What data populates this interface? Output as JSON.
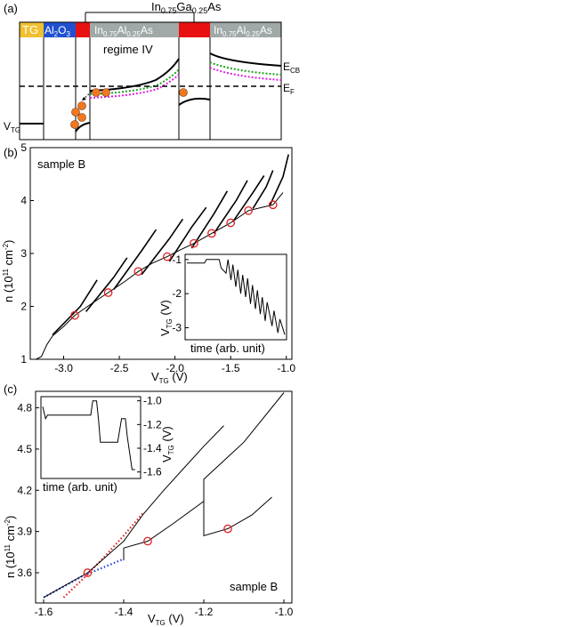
{
  "panel_a": {
    "label": "(a)",
    "layer_tg": "TG",
    "layer_oxide": "Al",
    "layer_oxide_sub": "2",
    "layer_oxide_tail": "O",
    "layer_oxide_sub2": "3",
    "barrier1": "In",
    "barrier1_sub1": "0.75",
    "barrier1_mid": "Al",
    "barrier1_sub2": "0.25",
    "barrier1_tail": "As",
    "barrier2": "In",
    "barrier2_sub1": "0.75",
    "barrier2_mid": "Al",
    "barrier2_sub2": "0.25",
    "barrier2_tail": "As",
    "well_label_a": "In",
    "well_label_sub1": "0.75",
    "well_label_b": "Ga",
    "well_label_sub2": "0.25",
    "well_label_c": "As",
    "regime": "regime IV",
    "ecb": "E",
    "ecb_sub": "CB",
    "ef": "E",
    "ef_sub": "F",
    "vtg": "V",
    "vtg_sub": "TG",
    "colors": {
      "tg": "#f0c030",
      "oxide": "#2050d0",
      "barrier": "#a0a8a8",
      "well": "#e81010",
      "electron": "#f07820",
      "green": "#20a020",
      "magenta": "#e020e0"
    }
  },
  "panel_b": {
    "label": "(b)",
    "sample": "sample B",
    "ylabel": "n (10",
    "ylabel_sup": "11",
    "ylabel_unit": " cm",
    "ylabel_sup2": "-2",
    "ylabel_close": ")",
    "xlabel": "V",
    "xlabel_sub": "TG",
    "xlabel_unit": " (V)",
    "inset_ylabel": "V",
    "inset_ylabel_sub": "TG",
    "inset_ylabel_unit": " (V)",
    "inset_xlabel": "time (arb. unit)"
  },
  "panel_c": {
    "label": "(c)",
    "sample": "sample B",
    "ylabel": "n (10",
    "ylabel_sup": "11",
    "ylabel_unit": " cm",
    "ylabel_sup2": "-2",
    "ylabel_close": ")",
    "xlabel": "V",
    "xlabel_sub": "TG",
    "xlabel_unit": " (V)",
    "inset_ylabel": "V",
    "inset_ylabel_sub": "TG",
    "inset_ylabel_unit": " (V)",
    "inset_xlabel": "time (arb. unit)"
  },
  "chart_data": [
    {
      "type": "line",
      "panel": "b",
      "xlim": [
        -3.3,
        -0.95
      ],
      "ylim": [
        1,
        5
      ],
      "x_ticks": [
        -3.0,
        -2.5,
        -2.0,
        -1.5,
        -1.0
      ],
      "x_tick_labels": [
        "-3.0",
        "-2.5",
        "-2.0",
        "-1.5",
        "-1.0"
      ],
      "y_ticks": [
        1,
        2,
        3,
        4,
        5
      ],
      "y_tick_labels": [
        "1",
        "2",
        "3",
        "4",
        "5"
      ],
      "circle_markers": [
        [
          -2.9,
          1.83
        ],
        [
          -2.6,
          2.26
        ],
        [
          -2.33,
          2.66
        ],
        [
          -2.07,
          2.94
        ],
        [
          -1.83,
          3.19
        ],
        [
          -1.67,
          3.38
        ],
        [
          -1.5,
          3.58
        ],
        [
          -1.34,
          3.81
        ],
        [
          -1.12,
          3.92
        ]
      ],
      "series": [
        {
          "values": [
            [
              -3.25,
              1.0
            ],
            [
              -3.2,
              1.05
            ],
            [
              -3.15,
              1.28
            ],
            [
              -3.1,
              1.44
            ],
            [
              -3.0,
              1.62
            ],
            [
              -2.9,
              1.83
            ],
            [
              -2.75,
              2.05
            ],
            [
              -2.6,
              2.26
            ],
            [
              -2.45,
              2.47
            ],
            [
              -2.33,
              2.66
            ],
            [
              -2.2,
              2.82
            ],
            [
              -2.07,
              2.94
            ],
            [
              -1.95,
              3.07
            ],
            [
              -1.83,
              3.19
            ],
            [
              -1.67,
              3.38
            ],
            [
              -1.5,
              3.58
            ],
            [
              -1.34,
              3.81
            ],
            [
              -1.2,
              3.88
            ],
            [
              -1.12,
              3.92
            ],
            [
              -1.03,
              4.15
            ]
          ]
        },
        {
          "values": [
            [
              -3.1,
              1.46
            ],
            [
              -2.85,
              2.0
            ],
            [
              -2.7,
              2.5
            ]
          ]
        },
        {
          "values": [
            [
              -2.8,
              1.9
            ],
            [
              -2.55,
              2.55
            ],
            [
              -2.43,
              2.92
            ]
          ]
        },
        {
          "values": [
            [
              -2.55,
              2.32
            ],
            [
              -2.3,
              3.05
            ],
            [
              -2.17,
              3.45
            ]
          ]
        },
        {
          "values": [
            [
              -2.3,
              2.6
            ],
            [
              -2.05,
              3.28
            ],
            [
              -1.93,
              3.65
            ]
          ]
        },
        {
          "values": [
            [
              -2.05,
              2.85
            ],
            [
              -1.85,
              3.5
            ],
            [
              -1.72,
              3.87
            ]
          ]
        },
        {
          "values": [
            [
              -1.85,
              3.1
            ],
            [
              -1.65,
              3.75
            ],
            [
              -1.53,
              4.18
            ]
          ]
        },
        {
          "values": [
            [
              -1.65,
              3.38
            ],
            [
              -1.45,
              4.0
            ],
            [
              -1.35,
              4.38
            ]
          ]
        },
        {
          "values": [
            [
              -1.48,
              3.6
            ],
            [
              -1.3,
              4.15
            ],
            [
              -1.2,
              4.47
            ]
          ]
        },
        {
          "values": [
            [
              -1.3,
              3.85
            ],
            [
              -1.18,
              4.26
            ],
            [
              -1.12,
              4.57
            ]
          ]
        },
        {
          "values": [
            [
              -1.15,
              3.9
            ],
            [
              -1.03,
              4.45
            ],
            [
              -0.98,
              4.87
            ]
          ]
        }
      ]
    },
    {
      "type": "line",
      "panel": "b-inset",
      "xlim": [
        0,
        1
      ],
      "ylim": [
        -3.3,
        -0.9
      ],
      "y_ticks": [
        -1,
        -2,
        -3
      ],
      "y_tick_labels": [
        "-1",
        "-2",
        "-3"
      ],
      "series": [
        {
          "values": [
            [
              0.0,
              -1.1
            ],
            [
              0.18,
              -1.1
            ],
            [
              0.2,
              -1.0
            ],
            [
              0.33,
              -1.0
            ],
            [
              0.35,
              -1.25
            ],
            [
              0.4,
              -1.4
            ],
            [
              0.42,
              -1.0
            ],
            [
              0.45,
              -1.6
            ],
            [
              0.47,
              -1.15
            ],
            [
              0.5,
              -1.8
            ],
            [
              0.52,
              -1.3
            ],
            [
              0.55,
              -2.0
            ],
            [
              0.57,
              -1.45
            ],
            [
              0.6,
              -2.1
            ],
            [
              0.62,
              -1.55
            ],
            [
              0.65,
              -2.3
            ],
            [
              0.67,
              -1.75
            ],
            [
              0.7,
              -2.45
            ],
            [
              0.72,
              -1.9
            ],
            [
              0.75,
              -2.6
            ],
            [
              0.77,
              -2.1
            ],
            [
              0.8,
              -2.8
            ],
            [
              0.82,
              -2.25
            ],
            [
              0.87,
              -2.95
            ],
            [
              0.89,
              -2.5
            ],
            [
              0.93,
              -3.15
            ],
            [
              0.95,
              -2.75
            ],
            [
              1.0,
              -3.2
            ]
          ]
        }
      ]
    },
    {
      "type": "line",
      "panel": "c",
      "xlim": [
        -1.62,
        -0.98
      ],
      "ylim": [
        3.38,
        4.92
      ],
      "x_ticks": [
        -1.6,
        -1.4,
        -1.2,
        -1.0
      ],
      "x_tick_labels": [
        "-1.6",
        "-1.4",
        "-1.2",
        "-1.0"
      ],
      "y_ticks": [
        3.6,
        3.9,
        4.2,
        4.5,
        4.8
      ],
      "y_tick_labels": [
        "3.6",
        "3.9",
        "4.2",
        "4.5",
        "4.8"
      ],
      "circle_markers": [
        [
          -1.49,
          3.6
        ],
        [
          -1.34,
          3.83
        ],
        [
          -1.14,
          3.92
        ]
      ],
      "series": [
        {
          "name_hidden": "",
          "values": [
            [
              -1.6,
              3.42
            ],
            [
              -1.49,
              3.6
            ],
            [
              -1.4,
              3.83
            ],
            [
              -1.35,
              4.03
            ],
            [
              -1.3,
              4.2
            ],
            [
              -1.25,
              4.36
            ],
            [
              -1.2,
              4.52
            ],
            [
              -1.15,
              4.67
            ]
          ]
        },
        {
          "values": [
            [
              -1.4,
              3.69
            ],
            [
              -1.4,
              3.78
            ],
            [
              -1.34,
              3.83
            ],
            [
              -1.28,
              3.95
            ],
            [
              -1.2,
              4.12
            ],
            [
              -1.2,
              4.28
            ],
            [
              -1.1,
              4.55
            ],
            [
              -1.0,
              4.91
            ]
          ]
        },
        {
          "values": [
            [
              -1.2,
              4.23
            ],
            [
              -1.2,
              3.87
            ],
            [
              -1.14,
              3.92
            ],
            [
              -1.08,
              4.02
            ],
            [
              -1.03,
              4.15
            ]
          ]
        }
      ],
      "dotted": [
        {
          "color": "#e02020",
          "values": [
            [
              -1.55,
              3.42
            ],
            [
              -1.5,
              3.56
            ],
            [
              -1.45,
              3.71
            ],
            [
              -1.4,
              3.87
            ],
            [
              -1.35,
              4.04
            ]
          ]
        },
        {
          "color": "#2040e0",
          "values": [
            [
              -1.6,
              3.42
            ],
            [
              -1.5,
              3.58
            ],
            [
              -1.4,
              3.7
            ]
          ]
        }
      ]
    },
    {
      "type": "line",
      "panel": "c-inset",
      "xlim": [
        0,
        1
      ],
      "ylim": [
        -1.64,
        -0.98
      ],
      "y_ticks": [
        -1.0,
        -1.2,
        -1.4,
        -1.6
      ],
      "y_tick_labels": [
        "-1.0",
        "-1.2",
        "-1.4",
        "-1.6"
      ],
      "series": [
        {
          "values": [
            [
              0.0,
              -1.05
            ],
            [
              0.03,
              -1.15
            ],
            [
              0.05,
              -1.12
            ],
            [
              0.5,
              -1.12
            ],
            [
              0.52,
              -1.0
            ],
            [
              0.56,
              -1.0
            ],
            [
              0.58,
              -1.15
            ],
            [
              0.6,
              -1.35
            ],
            [
              0.78,
              -1.35
            ],
            [
              0.8,
              -1.25
            ],
            [
              0.82,
              -1.15
            ],
            [
              0.86,
              -1.15
            ],
            [
              0.88,
              -1.3
            ],
            [
              0.93,
              -1.58
            ],
            [
              0.96,
              -1.58
            ]
          ]
        }
      ]
    }
  ]
}
